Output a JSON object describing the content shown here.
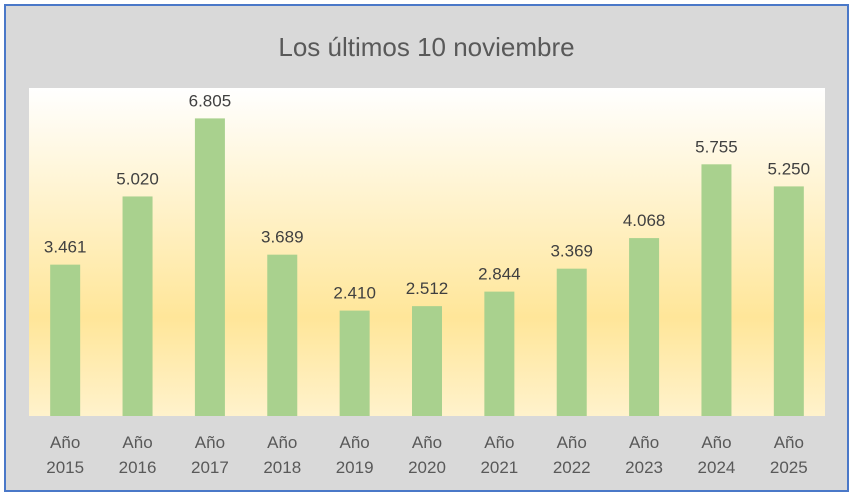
{
  "chart_data": {
    "type": "bar",
    "title": "Los últimos 10 noviembre",
    "categories": [
      "Año 2015",
      "Año 2016",
      "Año 2017",
      "Año 2018",
      "Año 2019",
      "Año 2020",
      "Año 2021",
      "Año 2022",
      "Año 2023",
      "Año 2024",
      "Año 2025"
    ],
    "category_lines": [
      [
        "Año",
        "2015"
      ],
      [
        "Año",
        "2016"
      ],
      [
        "Año",
        "2017"
      ],
      [
        "Año",
        "2018"
      ],
      [
        "Año",
        "2019"
      ],
      [
        "Año",
        "2020"
      ],
      [
        "Año",
        "2021"
      ],
      [
        "Año",
        "2022"
      ],
      [
        "Año",
        "2023"
      ],
      [
        "Año",
        "2024"
      ],
      [
        "Año",
        "2025"
      ]
    ],
    "values": [
      3461,
      5020,
      6805,
      3689,
      2410,
      2512,
      2844,
      3369,
      4068,
      5755,
      5250
    ],
    "value_labels": [
      "3.461",
      "5.020",
      "6.805",
      "3.689",
      "2.410",
      "2.512",
      "2.844",
      "3.369",
      "4.068",
      "5.755",
      "5.250"
    ],
    "ylim": [
      0,
      7500
    ],
    "grid": false,
    "legend": "none",
    "colors": {
      "bar": "#a9d18e",
      "frame_border": "#4a78c8",
      "frame_bg": "#d9d9d9",
      "plot_gradient_top": "#ffffff",
      "plot_gradient_mid": "#ffe699",
      "plot_gradient_bottom": "#fff2cc"
    }
  }
}
